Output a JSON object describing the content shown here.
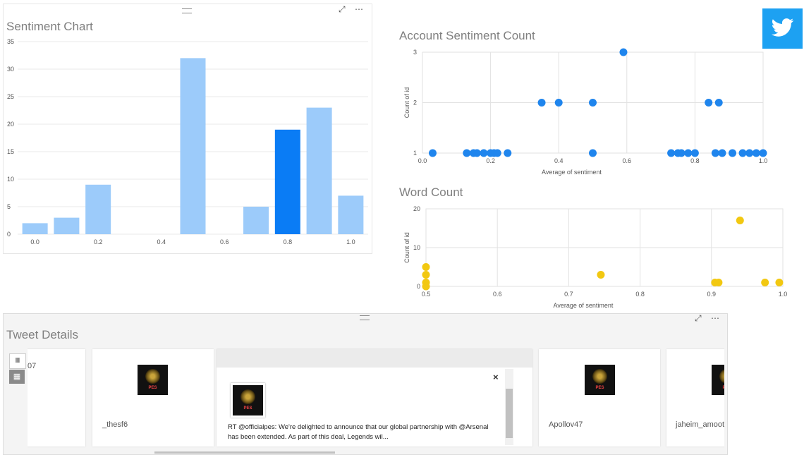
{
  "sentiment_chart": {
    "title": "Sentiment Chart",
    "chart_data": {
      "type": "bar",
      "title": "Sentiment Chart",
      "xlabel": "",
      "ylabel": "",
      "x": [
        0.0,
        0.1,
        0.2,
        0.5,
        0.7,
        0.8,
        0.9,
        1.0
      ],
      "values": [
        2,
        3,
        9,
        32,
        5,
        19,
        23,
        7
      ],
      "highlight_index": 5,
      "ylim": [
        0,
        35
      ],
      "y_ticks": [
        "0",
        "5",
        "10",
        "15",
        "20",
        "25",
        "30",
        "35"
      ],
      "x_ticks": [
        "0.0",
        "0.2",
        "0.4",
        "0.6",
        "0.8",
        "1.0"
      ],
      "grid": true,
      "colors": {
        "bar": "#9ccbfa",
        "highlight": "#0a7cf5"
      }
    }
  },
  "account_chart": {
    "title": "Account Sentiment Count",
    "chart_data": {
      "type": "scatter",
      "title": "Account Sentiment Count",
      "xlabel": "Average of sentiment",
      "ylabel": "Count of id",
      "xlim": [
        0.0,
        1.0
      ],
      "ylim": [
        1,
        3
      ],
      "x_ticks": [
        "0.0",
        "0.2",
        "0.4",
        "0.6",
        "0.8",
        "1.0"
      ],
      "y_ticks": [
        "1",
        "2",
        "3"
      ],
      "grid": true,
      "color": "#1f85ed",
      "points": [
        [
          0.03,
          1
        ],
        [
          0.13,
          1
        ],
        [
          0.15,
          1
        ],
        [
          0.16,
          1
        ],
        [
          0.18,
          1
        ],
        [
          0.2,
          1
        ],
        [
          0.21,
          1
        ],
        [
          0.22,
          1
        ],
        [
          0.25,
          1
        ],
        [
          0.35,
          2
        ],
        [
          0.4,
          2
        ],
        [
          0.5,
          2
        ],
        [
          0.5,
          1
        ],
        [
          0.59,
          3
        ],
        [
          0.73,
          1
        ],
        [
          0.75,
          1
        ],
        [
          0.76,
          1
        ],
        [
          0.78,
          1
        ],
        [
          0.8,
          1
        ],
        [
          0.84,
          2
        ],
        [
          0.87,
          2
        ],
        [
          0.86,
          1
        ],
        [
          0.88,
          1
        ],
        [
          0.91,
          1
        ],
        [
          0.94,
          1
        ],
        [
          0.96,
          1
        ],
        [
          0.98,
          1
        ],
        [
          1.0,
          1
        ]
      ]
    }
  },
  "word_chart": {
    "title": "Word Count",
    "chart_data": {
      "type": "scatter",
      "title": "Word Count",
      "xlabel": "Average of sentiment",
      "ylabel": "Count of id",
      "xlim": [
        0.5,
        1.0
      ],
      "ylim": [
        0,
        20
      ],
      "x_ticks": [
        "0.5",
        "0.6",
        "0.7",
        "0.8",
        "0.9",
        "1.0"
      ],
      "y_ticks": [
        "0",
        "10",
        "20"
      ],
      "grid": true,
      "color": "#f2c811",
      "points": [
        [
          0.5,
          5
        ],
        [
          0.5,
          3
        ],
        [
          0.5,
          1
        ],
        [
          0.5,
          0
        ],
        [
          0.745,
          3
        ],
        [
          0.905,
          1
        ],
        [
          0.91,
          1
        ],
        [
          0.94,
          17
        ],
        [
          0.975,
          1
        ],
        [
          0.995,
          1
        ]
      ]
    }
  },
  "tweet_details": {
    "title": "Tweet Details",
    "cards": [
      {
        "username": "07"
      },
      {
        "username": "_thesf6"
      },
      {
        "username": "Apollov47"
      },
      {
        "username": "jaheim_amoot"
      }
    ],
    "expanded": {
      "tweet_text": "RT @officialpes: We're delighted to announce that our global partnership with @Arsenal has been extended. As part of this deal, Legends wil...",
      "close_label": "×"
    },
    "thumb_label": "PES",
    "view_toggle": {
      "list_icon": "Ⅲ",
      "grid_icon": "▦"
    }
  },
  "header_icons": {
    "focus": "⤢",
    "more": "⋯"
  },
  "twitter_logo": {
    "color": "#1da1f2"
  }
}
